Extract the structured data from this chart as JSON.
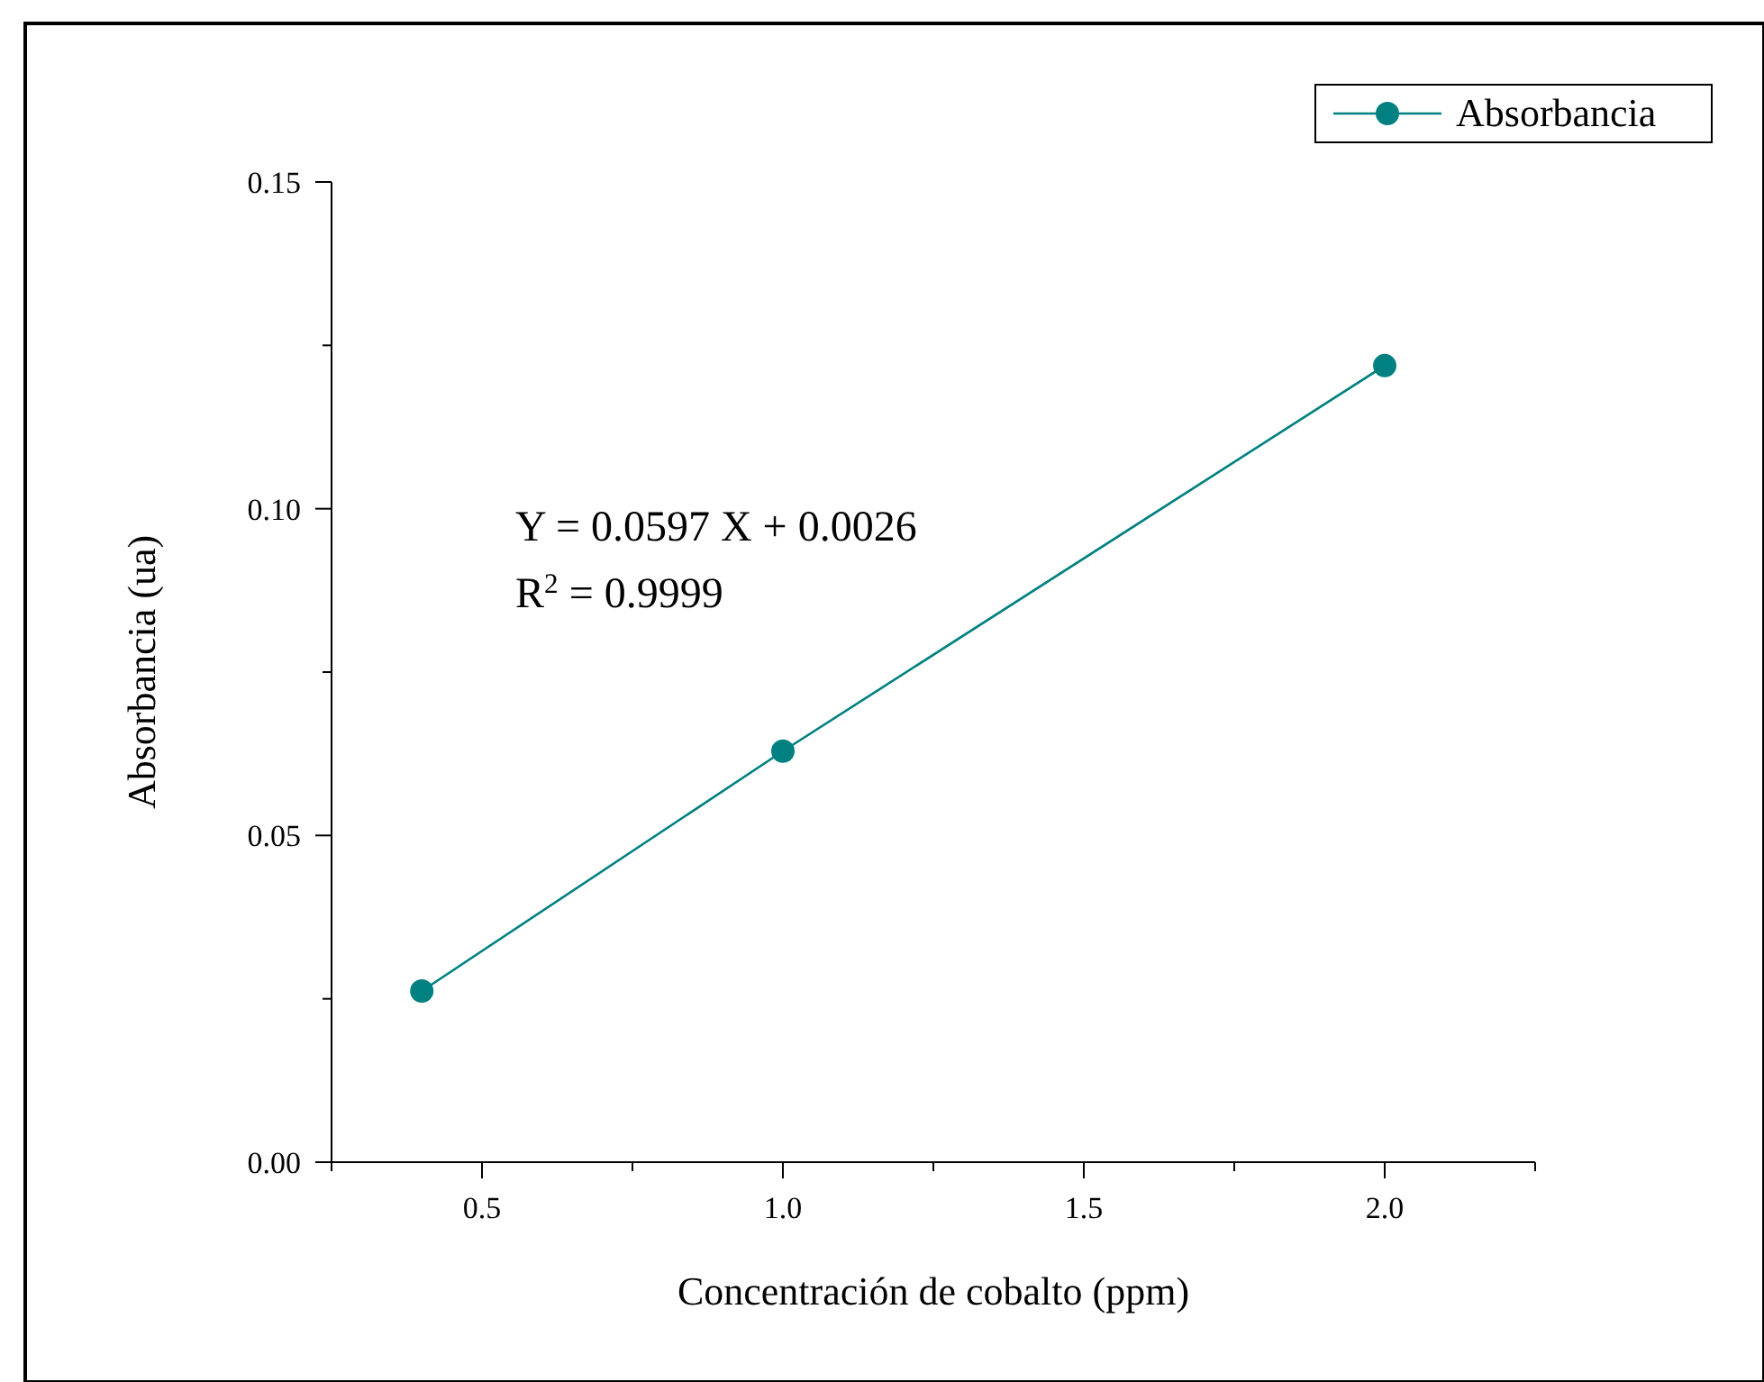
{
  "chart_data": {
    "type": "line",
    "xlabel": "Concentración de cobalto (ppm)",
    "ylabel": "Absorbancia (ua)",
    "x": [
      0.4,
      1.0,
      2.0
    ],
    "series": [
      {
        "name": "Absorbancia",
        "color": "#008080",
        "values": [
          0.0262,
          0.0629,
          0.1219
        ]
      }
    ],
    "xlim": [
      0.25,
      2.25
    ],
    "xticks": [
      {
        "value": 0.25,
        "label": null
      },
      0.5,
      {
        "value": 0.75,
        "label": null
      },
      {
        "value": 1,
        "label": "1.0"
      },
      {
        "value": 1.25,
        "label": null
      },
      1.5,
      {
        "value": 1.75,
        "label": null
      },
      {
        "value": 2,
        "label": "2.0"
      },
      {
        "value": 2.25,
        "label": null
      }
    ],
    "ylim": [
      0,
      0.15
    ],
    "yticks": [
      {
        "value": 0,
        "label": "0.00"
      },
      {
        "value": 0.025,
        "label": null
      },
      0.05,
      {
        "value": 0.075,
        "label": null
      },
      {
        "value": 0.1,
        "label": "0.10"
      },
      {
        "value": 0.125,
        "label": null
      },
      0.15
    ],
    "annotations": [
      "Y = 0.0597 X + 0.0026",
      "R$^{2}$ = 0.9999"
    ],
    "marker": "circle",
    "line_style": "solid",
    "grid": false,
    "legend": "top right"
  }
}
